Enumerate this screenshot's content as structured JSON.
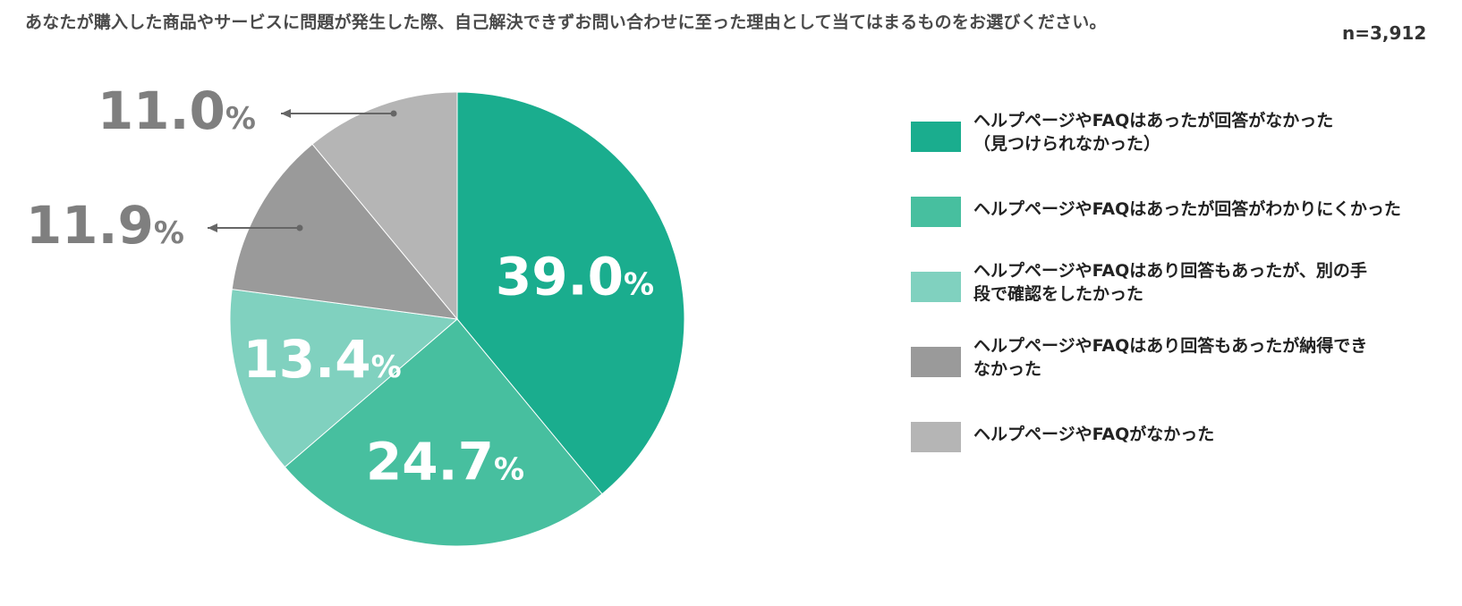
{
  "question": "あなたが購入した商品やサービスに問題が発生した際、自己解決できずお問い合わせに至った理由として当てはまるものをお選びください。",
  "sample_size": "n=3,912",
  "chart_data": {
    "type": "pie",
    "title": "",
    "unit": "%",
    "slices": [
      {
        "label": "ヘルプページやFAQはあったが回答がなかった\n（見つけられなかった）",
        "value": 39.0,
        "display": "39.0",
        "color": "#1aad8e",
        "label_color": "#ffffff",
        "label_inside": true
      },
      {
        "label": "ヘルプページやFAQはあったが回答がわかりにくかった",
        "value": 24.7,
        "display": "24.7",
        "color": "#47bf9f",
        "label_color": "#ffffff",
        "label_inside": true
      },
      {
        "label": "ヘルプページやFAQはあり回答もあったが、別の手\n段で確認をしたかった",
        "value": 13.4,
        "display": "13.4",
        "color": "#80d1bf",
        "label_color": "#ffffff",
        "label_inside": true
      },
      {
        "label": "ヘルプページやFAQはあり回答もあったが納得でき\nなかった",
        "value": 11.9,
        "display": "11.9",
        "color": "#9a9a9a",
        "label_color": "#7f7f7f",
        "label_inside": false
      },
      {
        "label": "ヘルプページやFAQがなかった",
        "value": 11.0,
        "display": "11.0",
        "color": "#b5b5b5",
        "label_color": "#7f7f7f",
        "label_inside": false
      }
    ],
    "legend_position": "right",
    "start_angle": "12 o'clock",
    "direction": "clockwise"
  }
}
